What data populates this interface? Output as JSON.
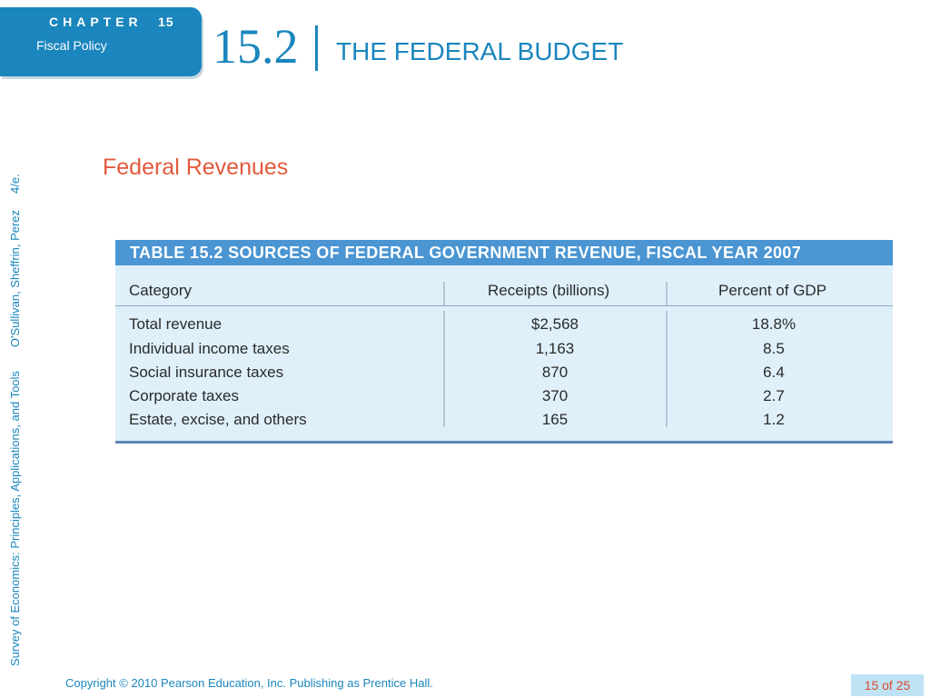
{
  "chapter": {
    "label": "CHAPTER",
    "number": "15",
    "subtitle": "Fiscal Policy"
  },
  "section": {
    "number": "15.2",
    "title": "THE FEDERAL BUDGET"
  },
  "side_text": {
    "book_title": "Survey of Economics: Principles, Applications, and Tools",
    "authors": "O'Sullivan, Sheffrin, Perez",
    "edition": "4/e."
  },
  "slide_subtitle": "Federal Revenues",
  "table": {
    "title": "TABLE 15.2  SOURCES OF FEDERAL GOVERNMENT REVENUE, FISCAL YEAR 2007",
    "headers": [
      "Category",
      "Receipts (billions)",
      "Percent of GDP"
    ],
    "rows": [
      {
        "category": "Total revenue",
        "receipts": "$2,568",
        "percent": "18.8%"
      },
      {
        "category": "Individual income taxes",
        "receipts": "1,163",
        "percent": "8.5"
      },
      {
        "category": "Social insurance taxes",
        "receipts": "870",
        "percent": "6.4"
      },
      {
        "category": "Corporate taxes",
        "receipts": "370",
        "percent": "2.7"
      },
      {
        "category": "Estate, excise, and others",
        "receipts": "165",
        "percent": "1.2"
      }
    ]
  },
  "footer": {
    "copyright": "Copyright © 2010  Pearson Education, Inc. Publishing as Prentice Hall."
  },
  "page": {
    "counter": "15 of 25"
  },
  "colors": {
    "brand_blue": "#1a86bd",
    "table_header": "#4a95d2",
    "table_bg": "#dff0fb",
    "subtitle": "#e35a3c"
  }
}
